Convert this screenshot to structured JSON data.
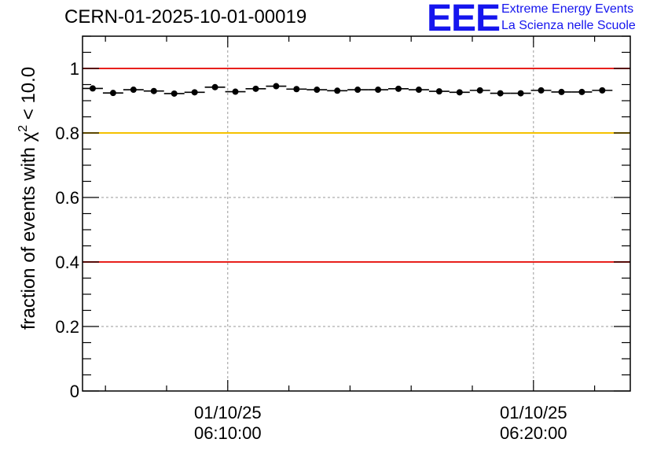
{
  "header": {
    "title": "CERN-01-2025-10-01-00019",
    "logo_text": "EEE",
    "logo_line1": "Extreme Energy Events",
    "logo_line2": "La Scienza nelle Scuole"
  },
  "colors": {
    "red_line": "#e8201c",
    "yellow_line": "#f5c200",
    "logo_blue": "#1515ee",
    "grid": "#9a9a9a",
    "marker": "#000000"
  },
  "chart_data": {
    "type": "scatter",
    "title": "CERN-01-2025-10-01-00019",
    "ylabel": "fraction of events with χ² < 10.0",
    "ylabel_main": "fraction of events with χ",
    "ylabel_sup": "2",
    "ylabel_tail": " < 10.0",
    "xlabel": "",
    "ylim": [
      0,
      1.1
    ],
    "xlim": [
      "06:05:15",
      "06:23:10"
    ],
    "y_ticks": [
      0,
      0.2,
      0.4,
      0.6,
      0.8,
      1
    ],
    "y_tick_labels": [
      "0",
      "0.2",
      "0.4",
      "0.6",
      "0.8",
      "1"
    ],
    "x_ticks": [
      {
        "time": "06:10:00",
        "line1": "01/10/25",
        "line2": "06:10:00"
      },
      {
        "time": "06:20:00",
        "line1": "01/10/25",
        "line2": "06:20:00"
      }
    ],
    "grid": true,
    "reference_lines": [
      {
        "y": 1.0,
        "color": "#e8201c"
      },
      {
        "y": 0.8,
        "color": "#f5c200"
      },
      {
        "y": 0.4,
        "color": "#e8201c"
      }
    ],
    "bin_width_seconds": 40,
    "points": [
      {
        "t": "06:05:35",
        "y": 0.938
      },
      {
        "t": "06:06:15",
        "y": 0.924
      },
      {
        "t": "06:06:55",
        "y": 0.934
      },
      {
        "t": "06:07:35",
        "y": 0.93
      },
      {
        "t": "06:08:15",
        "y": 0.922
      },
      {
        "t": "06:08:55",
        "y": 0.926
      },
      {
        "t": "06:09:35",
        "y": 0.942
      },
      {
        "t": "06:10:15",
        "y": 0.928
      },
      {
        "t": "06:10:55",
        "y": 0.937
      },
      {
        "t": "06:11:35",
        "y": 0.945
      },
      {
        "t": "06:12:15",
        "y": 0.936
      },
      {
        "t": "06:12:55",
        "y": 0.934
      },
      {
        "t": "06:13:35",
        "y": 0.931
      },
      {
        "t": "06:14:15",
        "y": 0.934
      },
      {
        "t": "06:14:55",
        "y": 0.934
      },
      {
        "t": "06:15:35",
        "y": 0.937
      },
      {
        "t": "06:16:15",
        "y": 0.934
      },
      {
        "t": "06:16:55",
        "y": 0.929
      },
      {
        "t": "06:17:35",
        "y": 0.926
      },
      {
        "t": "06:18:15",
        "y": 0.932
      },
      {
        "t": "06:18:55",
        "y": 0.923
      },
      {
        "t": "06:19:35",
        "y": 0.923
      },
      {
        "t": "06:20:15",
        "y": 0.932
      },
      {
        "t": "06:20:55",
        "y": 0.927
      },
      {
        "t": "06:21:35",
        "y": 0.927
      },
      {
        "t": "06:22:15",
        "y": 0.932
      }
    ]
  }
}
